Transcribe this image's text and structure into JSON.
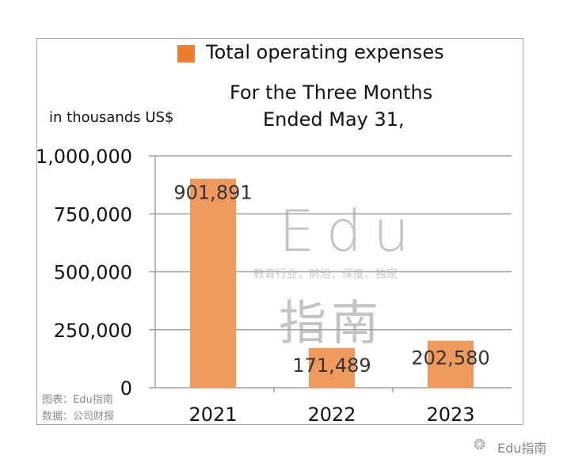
{
  "chart_data": {
    "type": "bar",
    "title": "For the Three Months Ended May 31,",
    "title_lines": [
      "For the Three Months",
      "Ended May 31,"
    ],
    "ylabel": "in thousands US$",
    "xlabel": "",
    "categories": [
      "2021",
      "2022",
      "2023"
    ],
    "series": [
      {
        "name": "Total operating expenses",
        "values": [
          901891,
          171489,
          202580
        ],
        "color": "#F0995C"
      }
    ],
    "data_labels": [
      "901,891",
      "171,489",
      "202,580"
    ],
    "ylim": [
      0,
      1000000
    ],
    "yticks": [
      0,
      250000,
      500000,
      750000,
      1000000
    ],
    "ytick_labels": [
      "0",
      "250,000",
      "500,000",
      "750,000",
      "1,000,000"
    ],
    "grid": true,
    "legend": "top",
    "legend_color": "#ED7D31"
  },
  "watermark": {
    "logo": "Edu",
    "tagline": "教育行业，前沿、深度、独家",
    "name": "指南"
  },
  "source": {
    "chart_credit": "图表：Edu指南",
    "data_credit": "数据：公司财报"
  },
  "footer": {
    "brand": "Edu指南",
    "icon": "wechat-icon"
  }
}
